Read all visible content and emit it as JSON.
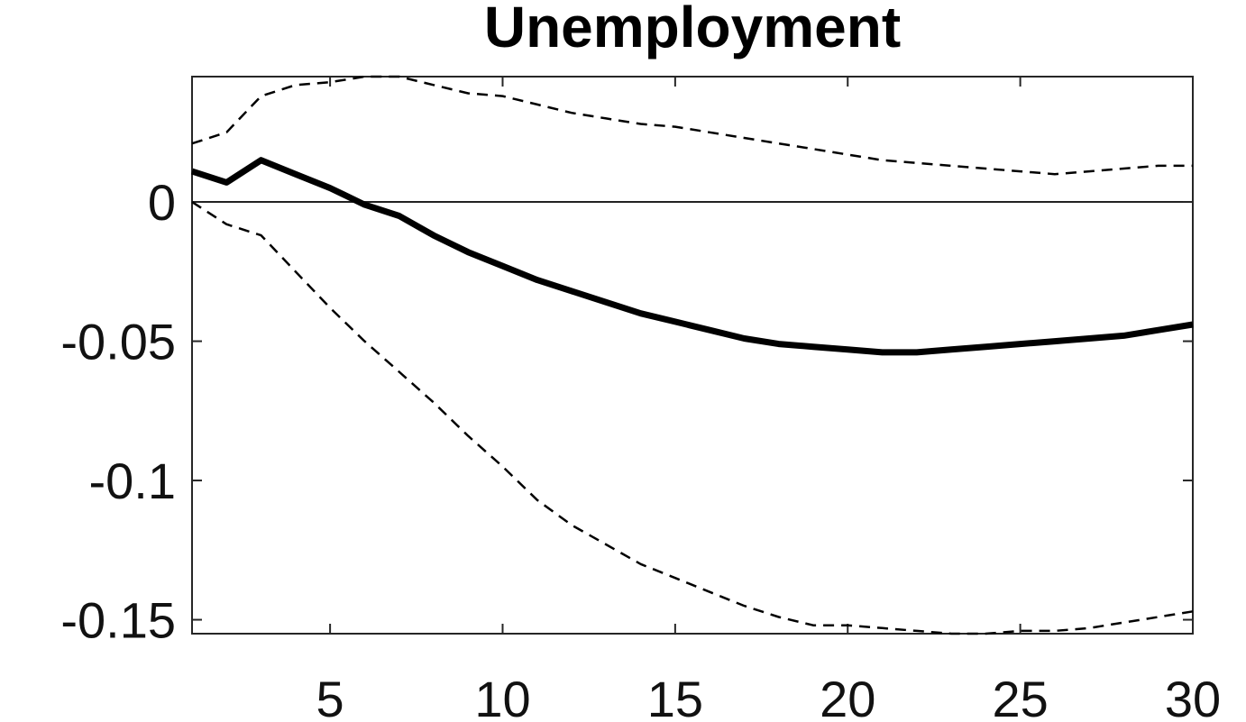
{
  "title": "Unemployment",
  "chart_data": {
    "type": "line",
    "title": "Unemployment",
    "xlabel": "",
    "ylabel": "",
    "xlim": [
      1,
      30
    ],
    "ylim": [
      -0.155,
      0.045
    ],
    "x_ticks": [
      5,
      10,
      15,
      20,
      25,
      30
    ],
    "y_ticks": [
      0,
      -0.05,
      -0.1,
      -0.15
    ],
    "x_tick_labels": [
      "5",
      "10",
      "15",
      "20",
      "25",
      "30"
    ],
    "y_tick_labels": [
      "0",
      "-0.05",
      "-0.1",
      "-0.15"
    ],
    "zero_line": true,
    "grid": false,
    "legend": "none",
    "x": [
      1,
      2,
      3,
      4,
      5,
      6,
      7,
      8,
      9,
      10,
      11,
      12,
      13,
      14,
      15,
      16,
      17,
      18,
      19,
      20,
      21,
      22,
      23,
      24,
      25,
      26,
      27,
      28,
      29,
      30
    ],
    "series": [
      {
        "role": "estimate",
        "style": "solid",
        "color": "#000000",
        "values": [
          0.011,
          0.007,
          0.015,
          0.01,
          0.005,
          -0.001,
          -0.005,
          -0.012,
          -0.018,
          -0.023,
          -0.028,
          -0.032,
          -0.036,
          -0.04,
          -0.043,
          -0.046,
          -0.049,
          -0.051,
          -0.052,
          -0.053,
          -0.054,
          -0.054,
          -0.053,
          -0.052,
          -0.051,
          -0.05,
          -0.049,
          -0.048,
          -0.046,
          -0.044
        ]
      },
      {
        "role": "upper band",
        "style": "dashed",
        "color": "#000000",
        "values": [
          0.021,
          0.025,
          0.038,
          0.042,
          0.043,
          0.045,
          0.045,
          0.042,
          0.039,
          0.038,
          0.035,
          0.032,
          0.03,
          0.028,
          0.027,
          0.025,
          0.023,
          0.021,
          0.019,
          0.017,
          0.015,
          0.014,
          0.013,
          0.012,
          0.011,
          0.01,
          0.011,
          0.012,
          0.013,
          0.013
        ]
      },
      {
        "role": "lower band",
        "style": "dashed",
        "color": "#000000",
        "values": [
          0.0,
          -0.008,
          -0.012,
          -0.025,
          -0.038,
          -0.05,
          -0.061,
          -0.072,
          -0.084,
          -0.095,
          -0.107,
          -0.116,
          -0.123,
          -0.13,
          -0.135,
          -0.14,
          -0.145,
          -0.149,
          -0.152,
          -0.152,
          -0.153,
          -0.154,
          -0.155,
          -0.155,
          -0.154,
          -0.154,
          -0.153,
          -0.151,
          -0.149,
          -0.147
        ]
      }
    ]
  }
}
